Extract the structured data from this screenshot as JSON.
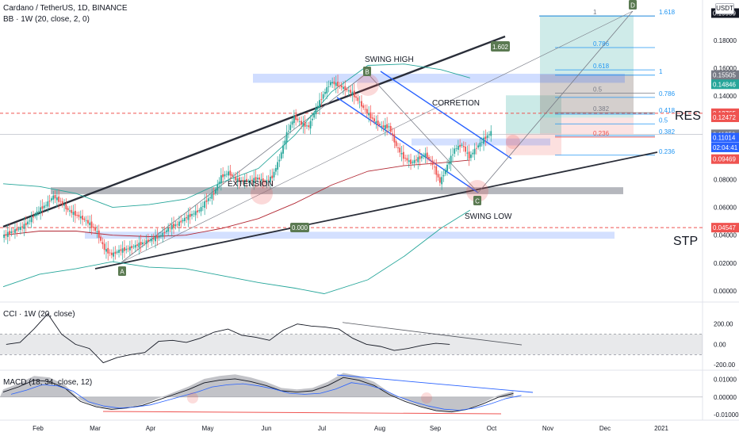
{
  "header": {
    "title": "Cardano / TetherUS, 1D, BINANCE",
    "bb_label": "BB · 1W (20, close, 2, 0)",
    "currency": "USDT"
  },
  "chart_data": [
    {
      "type": "candlestick",
      "title": "Cardano / TetherUS, 1D, BINANCE",
      "ylim": [
        -0.004,
        0.205
      ],
      "x_ticks": [
        "Feb",
        "Mar",
        "Apr",
        "May",
        "Jun",
        "Jul",
        "Aug",
        "Sep",
        "Oct",
        "Nov",
        "Dec",
        "2021"
      ],
      "y_ticks": [
        "0.18000",
        "0.16000",
        "0.14000",
        "0.08000",
        "0.06000",
        "0.04000",
        "0.02000",
        "0.00000"
      ],
      "price_tags": [
        {
          "value": 0.19959,
          "label": "0.19959",
          "color": "#131722"
        },
        {
          "value": 0.15505,
          "label": "0.15505",
          "color": "#787b86"
        },
        {
          "value": 0.14846,
          "label": "0.14846",
          "color": "#26a69a"
        },
        {
          "value": 0.12765,
          "label": "0.12765",
          "color": "#ef5350"
        },
        {
          "value": 0.12472,
          "label": "0.12472",
          "color": "#ef5350"
        },
        {
          "value": 0.1125,
          "label": "0.11250",
          "color": "#787b86"
        },
        {
          "value": 0.11014,
          "label": "0.11014",
          "color": "#2962ff"
        },
        {
          "value": 0.1031,
          "label": "02:04:41",
          "color": "#2962ff"
        },
        {
          "value": 0.09469,
          "label": "0.09469",
          "color": "#ef5350"
        },
        {
          "value": 0.04547,
          "label": "0.04547",
          "color": "#ef5350"
        }
      ],
      "price_path": [
        [
          0,
          0.039
        ],
        [
          1,
          0.042
        ],
        [
          2,
          0.044
        ],
        [
          3,
          0.047
        ],
        [
          4,
          0.052
        ],
        [
          5,
          0.058
        ],
        [
          6,
          0.062
        ],
        [
          7,
          0.068
        ],
        [
          8,
          0.064
        ],
        [
          9,
          0.058
        ],
        [
          10,
          0.055
        ],
        [
          11,
          0.052
        ],
        [
          12,
          0.048
        ],
        [
          13,
          0.042
        ],
        [
          14,
          0.03
        ],
        [
          15,
          0.026
        ],
        [
          16,
          0.029
        ],
        [
          17,
          0.03
        ],
        [
          18,
          0.032
        ],
        [
          19,
          0.034
        ],
        [
          20,
          0.036
        ],
        [
          21,
          0.038
        ],
        [
          22,
          0.041
        ],
        [
          23,
          0.046
        ],
        [
          24,
          0.048
        ],
        [
          25,
          0.052
        ],
        [
          26,
          0.055
        ],
        [
          27,
          0.058
        ],
        [
          28,
          0.065
        ],
        [
          29,
          0.07
        ],
        [
          30,
          0.082
        ],
        [
          31,
          0.085
        ],
        [
          32,
          0.08
        ],
        [
          33,
          0.079
        ],
        [
          34,
          0.079
        ],
        [
          35,
          0.081
        ],
        [
          36,
          0.078
        ],
        [
          37,
          0.082
        ],
        [
          38,
          0.095
        ],
        [
          39,
          0.113
        ],
        [
          40,
          0.125
        ],
        [
          41,
          0.12
        ],
        [
          42,
          0.118
        ],
        [
          43,
          0.131
        ],
        [
          44,
          0.141
        ],
        [
          45,
          0.15
        ],
        [
          46,
          0.148
        ],
        [
          47,
          0.145
        ],
        [
          48,
          0.142
        ],
        [
          49,
          0.135
        ],
        [
          50,
          0.128
        ],
        [
          51,
          0.122
        ],
        [
          52,
          0.118
        ],
        [
          53,
          0.118
        ],
        [
          54,
          0.104
        ],
        [
          55,
          0.096
        ],
        [
          56,
          0.092
        ],
        [
          57,
          0.095
        ],
        [
          58,
          0.098
        ],
        [
          59,
          0.091
        ],
        [
          60,
          0.078
        ],
        [
          61,
          0.09
        ],
        [
          62,
          0.102
        ],
        [
          63,
          0.105
        ],
        [
          64,
          0.096
        ],
        [
          65,
          0.103
        ],
        [
          66,
          0.109
        ],
        [
          67,
          0.114
        ]
      ],
      "bollinger": {
        "upper": [
          [
            0,
            0.077
          ],
          [
            5,
            0.075
          ],
          [
            10,
            0.07
          ],
          [
            15,
            0.06
          ],
          [
            20,
            0.062
          ],
          [
            25,
            0.066
          ],
          [
            30,
            0.078
          ],
          [
            35,
            0.088
          ],
          [
            40,
            0.112
          ],
          [
            45,
            0.143
          ],
          [
            50,
            0.162
          ],
          [
            55,
            0.163
          ],
          [
            60,
            0.159
          ],
          [
            64,
            0.153
          ]
        ],
        "middle": [
          [
            0,
            0.04
          ],
          [
            5,
            0.043
          ],
          [
            10,
            0.043
          ],
          [
            15,
            0.04
          ],
          [
            20,
            0.039
          ],
          [
            25,
            0.04
          ],
          [
            30,
            0.045
          ],
          [
            35,
            0.052
          ],
          [
            40,
            0.063
          ],
          [
            45,
            0.076
          ],
          [
            50,
            0.086
          ],
          [
            55,
            0.09
          ],
          [
            60,
            0.092
          ],
          [
            64,
            0.094
          ]
        ],
        "lower": [
          [
            0,
            0.003
          ],
          [
            5,
            0.012
          ],
          [
            10,
            0.016
          ],
          [
            15,
            0.021
          ],
          [
            20,
            0.017
          ],
          [
            25,
            0.016
          ],
          [
            30,
            0.011
          ],
          [
            35,
            0.006
          ],
          [
            40,
            0.002
          ],
          [
            44,
            -0.002
          ],
          [
            50,
            0.008
          ],
          [
            55,
            0.025
          ],
          [
            60,
            0.045
          ],
          [
            64,
            0.058
          ]
        ]
      },
      "fib_levels": [
        {
          "level": "1",
          "value": 0.1975
        },
        {
          "level": "1.618",
          "value": 0.1975
        },
        {
          "level": "0.786",
          "value": 0.1748
        },
        {
          "level": "0.618",
          "value": 0.1588
        },
        {
          "level": "1",
          "value": 0.155
        },
        {
          "level": "0.5",
          "value": 0.142
        },
        {
          "level": "0.786",
          "value": 0.139
        },
        {
          "level": "0.382",
          "value": 0.128
        },
        {
          "level": "0.418",
          "value": 0.127
        },
        {
          "level": "0.5",
          "value": 0.12
        },
        {
          "level": "0.382",
          "value": 0.1115
        },
        {
          "level": "0.236",
          "value": 0.1105
        },
        {
          "level": "0.236",
          "value": 0.0975
        }
      ],
      "annotations": {
        "swing_high": "SWING HIGH",
        "correction": "CORRETION",
        "extension": "EXTENSION",
        "swing_low": "SWING LOW",
        "res": "RES",
        "stp": "STP",
        "point_a": "A",
        "point_b": "B",
        "point_c": "C",
        "point_d": "D",
        "ext_1602": "1.602",
        "mid_label": "0.000"
      }
    },
    {
      "type": "line",
      "title": "CCI · 1W (20, close)",
      "y_ticks": [
        "200.00",
        "0.00",
        "-200.00"
      ],
      "ylim": [
        -230,
        330
      ],
      "series": [
        {
          "values": [
            [
              0,
              0
            ],
            [
              2,
              20
            ],
            [
              4,
              150
            ],
            [
              6,
              300
            ],
            [
              8,
              100
            ],
            [
              10,
              0
            ],
            [
              12,
              -40
            ],
            [
              14,
              -180
            ],
            [
              16,
              -130
            ],
            [
              18,
              -100
            ],
            [
              20,
              -80
            ],
            [
              22,
              30
            ],
            [
              24,
              40
            ],
            [
              26,
              20
            ],
            [
              28,
              60
            ],
            [
              30,
              120
            ],
            [
              32,
              150
            ],
            [
              34,
              90
            ],
            [
              36,
              70
            ],
            [
              38,
              40
            ],
            [
              40,
              140
            ],
            [
              42,
              200
            ],
            [
              44,
              180
            ],
            [
              46,
              170
            ],
            [
              48,
              150
            ],
            [
              50,
              60
            ],
            [
              52,
              0
            ],
            [
              54,
              -20
            ],
            [
              56,
              -60
            ],
            [
              58,
              -40
            ],
            [
              60,
              -10
            ],
            [
              62,
              10
            ],
            [
              64,
              0
            ]
          ]
        }
      ],
      "overbought_band": [
        -100,
        100
      ]
    },
    {
      "type": "line",
      "title": "MACD (18, 34, close, 12)",
      "y_ticks": [
        "0.01000",
        "0.00000",
        "-0.01000"
      ],
      "ylim": [
        -0.0122,
        0.0138
      ]
    }
  ]
}
